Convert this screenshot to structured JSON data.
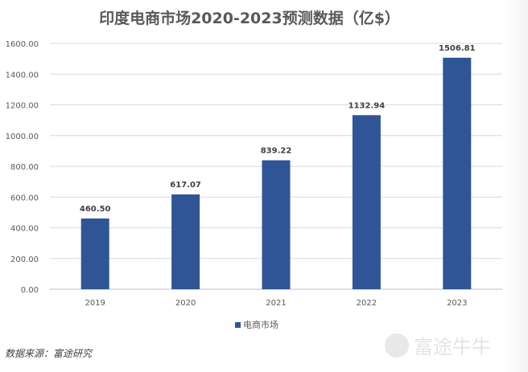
{
  "chart_data": {
    "type": "bar",
    "title": "印度电商市场2020-2023预测数据（亿$）",
    "categories": [
      "2019",
      "2020",
      "2021",
      "2022",
      "2023"
    ],
    "series": [
      {
        "name": "电商市场",
        "values": [
          460.5,
          617.07,
          839.22,
          1132.94,
          1506.81
        ],
        "color": "#2F5597"
      }
    ],
    "data_labels": [
      "460.50",
      "617.07",
      "839.22",
      "1132.94",
      "1506.81"
    ],
    "yticks": [
      "0.00",
      "200.00",
      "400.00",
      "600.00",
      "800.00",
      "1000.00",
      "1200.00",
      "1400.00",
      "1600.00"
    ],
    "ylim": [
      0,
      1600
    ],
    "grid": true,
    "legend": "bottom"
  },
  "source": "数据来源：富途研究",
  "watermark": "富途牛牛"
}
